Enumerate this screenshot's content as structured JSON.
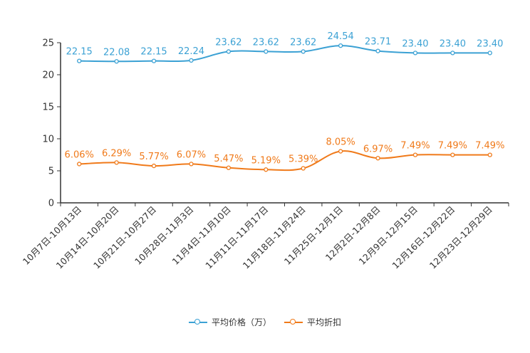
{
  "chart_data": {
    "type": "line",
    "title": "",
    "xlabel": "",
    "ylabel": "",
    "ylim": [
      0,
      25
    ],
    "yticks": [
      0,
      5,
      10,
      15,
      20,
      25
    ],
    "grid": false,
    "legend_position": "bottom-center",
    "categories": [
      "10月7日-10月13日",
      "10月14日-10月20日",
      "10月21日-10月27日",
      "10月28日-11月3日",
      "11月4日-11月10日",
      "11月11日-11月17日",
      "11月18日-11月24日",
      "11月25日-12月1日",
      "12月2日-12月8日",
      "12月9日-12月15日",
      "12月16日-12月22日",
      "12月23日-12月29日"
    ],
    "series": [
      {
        "name": "平均价格（万）",
        "color": "#3ba1d4",
        "values": [
          22.15,
          22.08,
          22.15,
          22.24,
          23.62,
          23.62,
          23.62,
          24.54,
          23.71,
          23.4,
          23.4,
          23.4
        ],
        "labels": [
          "22.15",
          "22.08",
          "22.15",
          "22.24",
          "23.62",
          "23.62",
          "23.62",
          "24.54",
          "23.71",
          "23.40",
          "23.40",
          "23.40"
        ]
      },
      {
        "name": "平均折扣",
        "color": "#f07a1a",
        "values": [
          6.06,
          6.29,
          5.77,
          6.07,
          5.47,
          5.19,
          5.39,
          8.05,
          6.97,
          7.49,
          7.49,
          7.49
        ],
        "labels": [
          "6.06%",
          "6.29%",
          "5.77%",
          "6.07%",
          "5.47%",
          "5.19%",
          "5.39%",
          "8.05%",
          "6.97%",
          "7.49%",
          "7.49%",
          "7.49%"
        ]
      }
    ]
  }
}
